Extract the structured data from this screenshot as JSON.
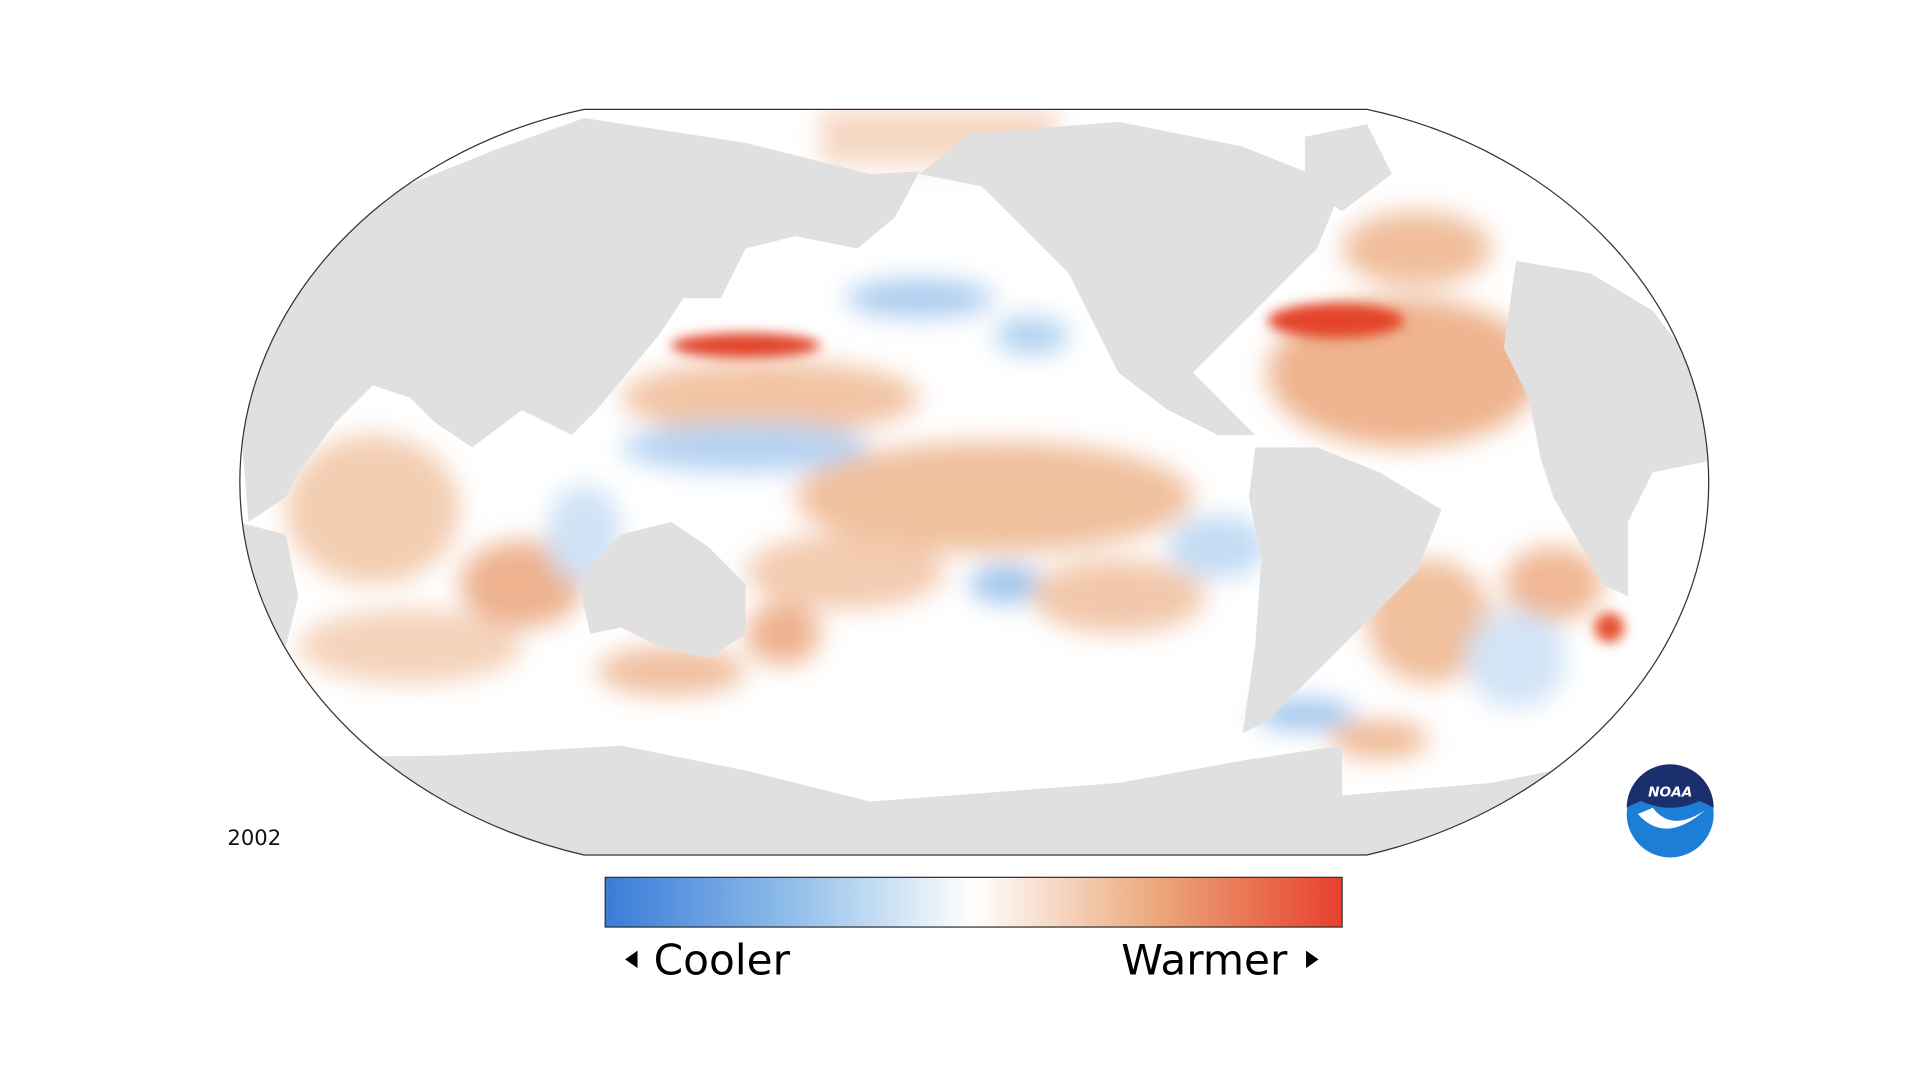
{
  "year": "2002",
  "legend": {
    "low": "Cooler",
    "high": "Warmer"
  },
  "logo": "NOAA"
}
